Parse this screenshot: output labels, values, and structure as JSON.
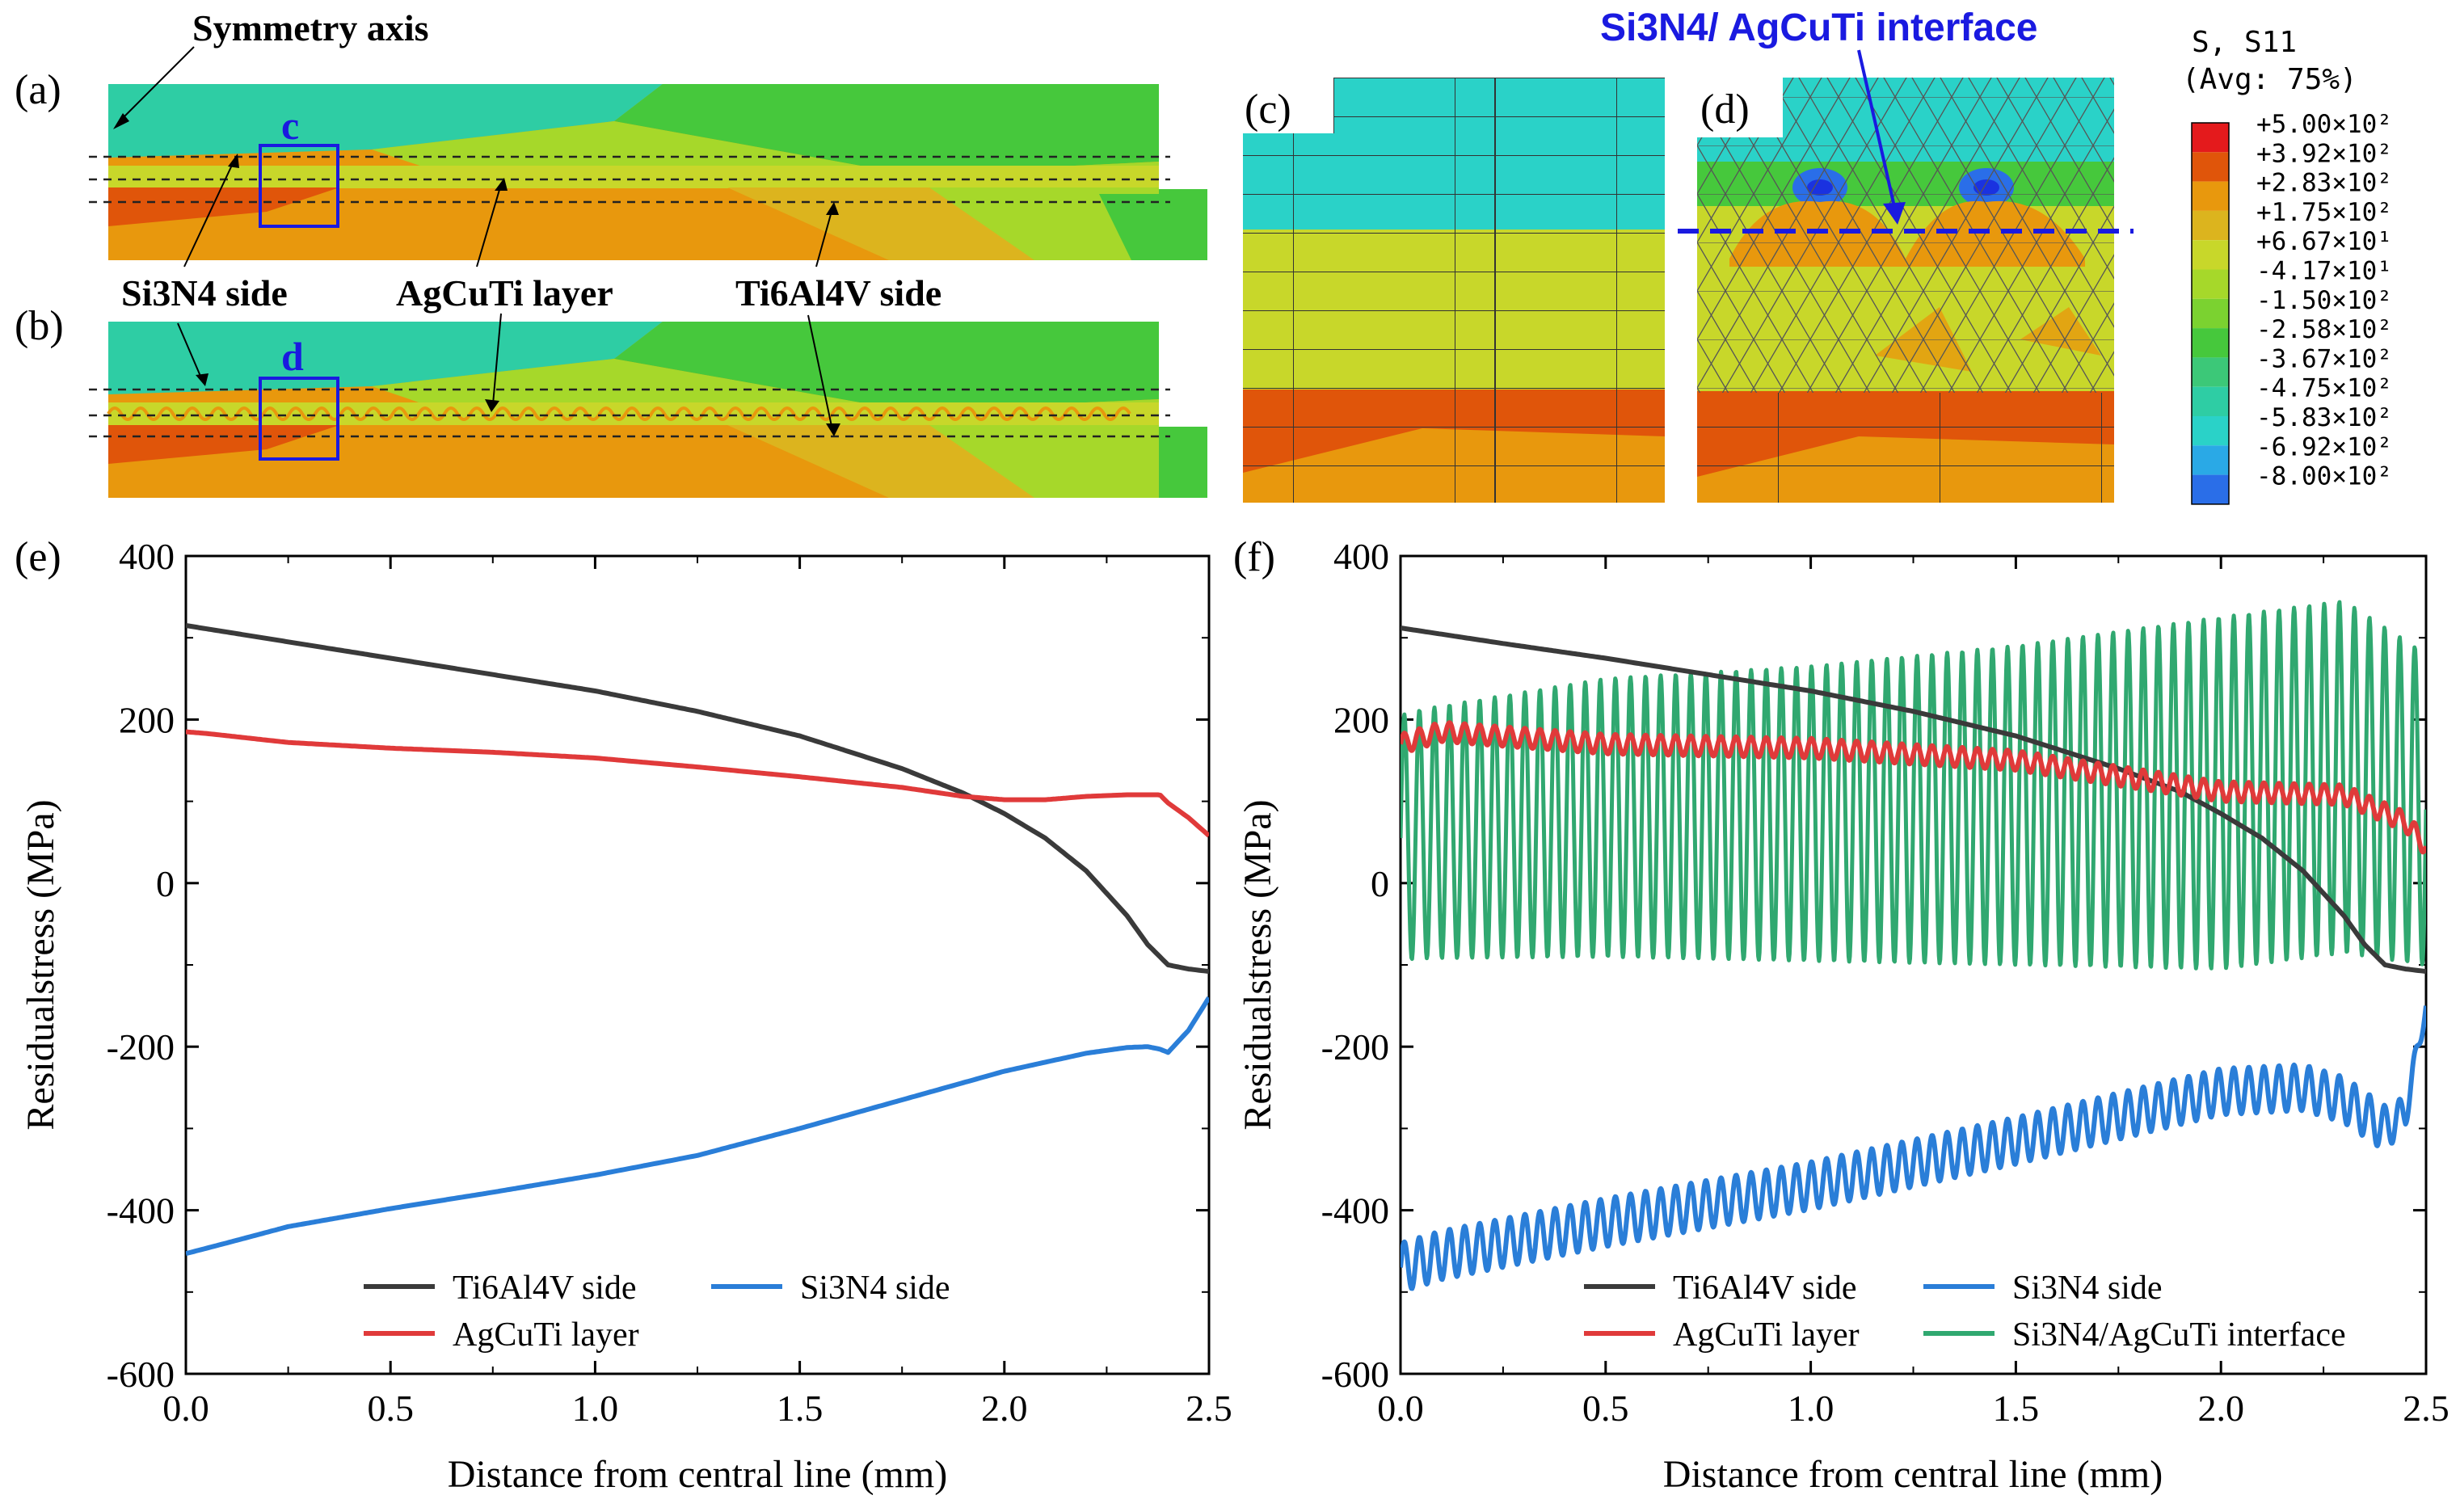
{
  "colors": {
    "red": "#e41a1c",
    "orange_red": "#e0550a",
    "orange": "#e8980d",
    "orange_yellow": "#dcb41e",
    "yellow": "#c8d72a",
    "yellow_green": "#a6d82a",
    "light_green": "#7bd230",
    "green": "#46c83c",
    "green2": "#3cc878",
    "cyan_green": "#2ecda4",
    "cyan": "#2ad2c8",
    "light_blue": "#2aa9e6",
    "blue": "#2a6ee8",
    "dark_blue": "#1a32e0",
    "deep_blue": "#0a0aff",
    "line_black": "#3a3a3a",
    "line_red": "#e03a3a",
    "line_blue": "#2a7ed8",
    "line_green": "#30a870",
    "marker_blue": "#1a1ae0"
  },
  "panel_labels": {
    "a": "(a)",
    "b": "(b)",
    "c": "(c)",
    "d": "(d)",
    "e": "(e)",
    "f": "(f)"
  },
  "box_labels": {
    "c": "c",
    "d": "d"
  },
  "annotations": {
    "symmetry_axis": "Symmetry axis",
    "si3n4_side": "Si3N4 side",
    "agcuti_layer": "AgCuTi layer",
    "ti6al4v_side": "Ti6Al4V side",
    "interface": "Si3N4/ AgCuTi interface"
  },
  "legend_fem": {
    "title_line1": "S, S11",
    "title_line2": "(Avg: 75%)",
    "entries": [
      "+5.00×10²",
      "+3.92×10²",
      "+2.83×10²",
      "+1.75×10²",
      "+6.67×10¹",
      "-4.17×10¹",
      "-1.50×10²",
      "-2.58×10²",
      "-3.67×10²",
      "-4.75×10²",
      "-5.83×10²",
      "-6.92×10²",
      "-8.00×10²"
    ]
  },
  "chart_data": [
    {
      "panel": "e",
      "type": "line",
      "xlabel": "Distance from central line (mm)",
      "ylabel": "Residualstress (MPa)",
      "xlim": [
        0,
        2.5
      ],
      "ylim": [
        -600,
        400
      ],
      "xticks": [
        "0.0",
        "0.5",
        "1.0",
        "1.5",
        "2.0",
        "2.5"
      ],
      "yticks": [
        "400",
        "200",
        "0",
        "-200",
        "-400",
        "-600"
      ],
      "xtick_values": [
        0,
        0.5,
        1.0,
        1.5,
        2.0,
        2.5
      ],
      "ytick_values": [
        400,
        200,
        0,
        -200,
        -400,
        -600
      ],
      "legend": [
        "Ti6Al4V side",
        "Si3N4 side",
        "AgCuTi layer"
      ],
      "series": [
        {
          "name": "Ti6Al4V side",
          "color": "#3a3a3a",
          "x": [
            0,
            0.25,
            0.5,
            0.75,
            1.0,
            1.25,
            1.5,
            1.75,
            1.9,
            2.0,
            2.1,
            2.2,
            2.3,
            2.35,
            2.4,
            2.45,
            2.5
          ],
          "y": [
            315,
            295,
            275,
            255,
            235,
            210,
            180,
            140,
            110,
            85,
            55,
            15,
            -40,
            -75,
            -100,
            -105,
            -108
          ]
        },
        {
          "name": "AgCuTi layer",
          "color": "#e03a3a",
          "x": [
            0,
            0.05,
            0.25,
            0.5,
            0.75,
            1.0,
            1.25,
            1.5,
            1.75,
            1.9,
            2.0,
            2.1,
            2.2,
            2.3,
            2.38,
            2.4,
            2.45,
            2.5
          ],
          "y": [
            185,
            183,
            172,
            165,
            160,
            153,
            142,
            130,
            117,
            106,
            102,
            102,
            106,
            108,
            108,
            98,
            80,
            58
          ]
        },
        {
          "name": "Si3N4 side",
          "color": "#2a7ed8",
          "x": [
            0,
            0.1,
            0.25,
            0.5,
            0.75,
            1.0,
            1.25,
            1.5,
            1.75,
            2.0,
            2.2,
            2.3,
            2.35,
            2.38,
            2.4,
            2.45,
            2.5
          ],
          "y": [
            -453,
            -440,
            -420,
            -398,
            -378,
            -357,
            -333,
            -300,
            -265,
            -230,
            -208,
            -201,
            -200,
            -203,
            -207,
            -180,
            -140
          ]
        }
      ]
    },
    {
      "panel": "f",
      "type": "line",
      "xlabel": "Distance from central line (mm)",
      "ylabel": "Residualstress (MPa)",
      "xlim": [
        0,
        2.5
      ],
      "ylim": [
        -600,
        400
      ],
      "xticks": [
        "0.0",
        "0.5",
        "1.0",
        "1.5",
        "2.0",
        "2.5"
      ],
      "yticks": [
        "400",
        "200",
        "0",
        "-200",
        "-400",
        "-600"
      ],
      "xtick_values": [
        0,
        0.5,
        1.0,
        1.5,
        2.0,
        2.5
      ],
      "ytick_values": [
        400,
        200,
        0,
        -200,
        -400,
        -600
      ],
      "legend": [
        "Ti6Al4V side",
        "Si3N4 side",
        "AgCuTi layer",
        "Si3N4/AgCuTi interface"
      ],
      "series": [
        {
          "name": "Si3N4/AgCuTi interface",
          "color": "#30a870",
          "oscillating": true,
          "x": [
            0,
            0.05,
            0.5,
            1.0,
            1.5,
            2.0,
            2.3,
            2.45,
            2.5
          ],
          "y": [
            55,
            60,
            80,
            85,
            95,
            110,
            130,
            100,
            90
          ],
          "amplitude_x": [
            0,
            0.5,
            1.0,
            1.5,
            2.0,
            2.3,
            2.5
          ],
          "amplitude": [
            150,
            170,
            180,
            195,
            215,
            215,
            190
          ],
          "cycles": 68
        },
        {
          "name": "Ti6Al4V side",
          "color": "#3a3a3a",
          "x": [
            0,
            0.25,
            0.5,
            0.75,
            1.0,
            1.25,
            1.5,
            1.75,
            1.9,
            2.0,
            2.1,
            2.2,
            2.3,
            2.35,
            2.4,
            2.45,
            2.5
          ],
          "y": [
            312,
            293,
            275,
            255,
            235,
            210,
            180,
            140,
            112,
            85,
            55,
            15,
            -40,
            -75,
            -100,
            -105,
            -108
          ]
        },
        {
          "name": "AgCuTi layer",
          "color": "#e03a3a",
          "oscillating": true,
          "x": [
            0,
            0.1,
            0.5,
            1.0,
            1.5,
            2.0,
            2.3,
            2.45,
            2.5
          ],
          "y": [
            170,
            185,
            170,
            165,
            150,
            112,
            108,
            75,
            45
          ],
          "amplitude_x": [
            0,
            2.5
          ],
          "amplitude": [
            12,
            12
          ],
          "cycles": 68
        },
        {
          "name": "Si3N4 side",
          "color": "#2a7ed8",
          "oscillating": true,
          "x": [
            0,
            0.1,
            0.5,
            1.0,
            1.5,
            2.0,
            2.2,
            2.3,
            2.4,
            2.45,
            2.5
          ],
          "y": [
            -470,
            -455,
            -415,
            -370,
            -315,
            -255,
            -250,
            -265,
            -300,
            -280,
            -150
          ],
          "amplitude_x": [
            0,
            2.4,
            2.5
          ],
          "amplitude": [
            30,
            28,
            10
          ],
          "cycles": 68
        }
      ]
    }
  ]
}
